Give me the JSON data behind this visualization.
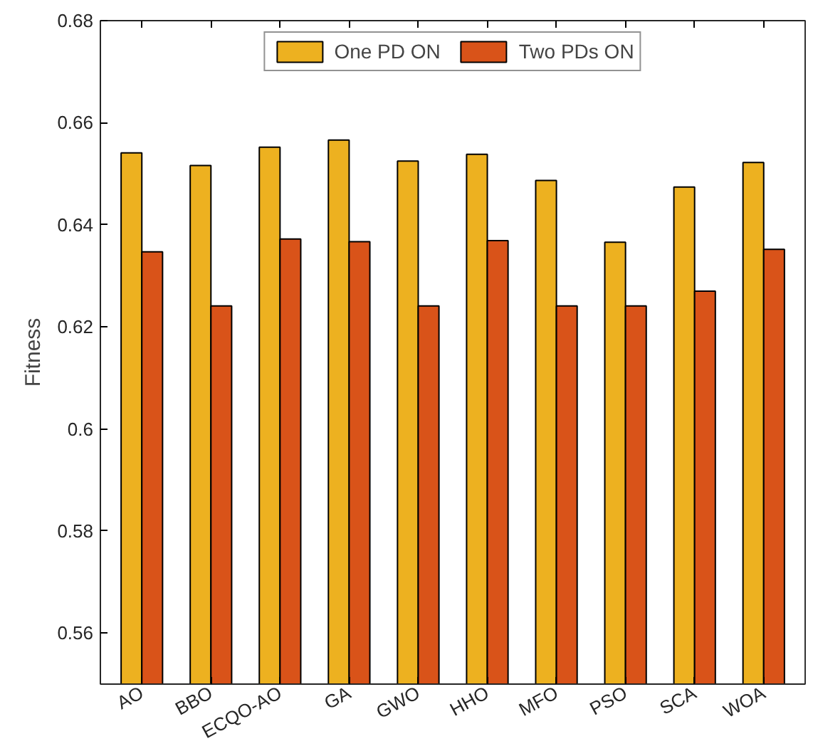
{
  "chart_data": {
    "type": "bar",
    "ylabel": "Fitness",
    "categories": [
      "AO",
      "BBO",
      "ECQO-AO",
      "GA",
      "GWO",
      "HHO",
      "MFO",
      "PSO",
      "SCA",
      "WOA"
    ],
    "series": [
      {
        "name": "One PD ON",
        "color": "#edb120",
        "values": [
          0.6541,
          0.6516,
          0.6552,
          0.6566,
          0.6525,
          0.6538,
          0.6487,
          0.6366,
          0.6474,
          0.6522
        ]
      },
      {
        "name": "Two PDs ON",
        "color": "#d95319",
        "values": [
          0.6347,
          0.6241,
          0.6372,
          0.6367,
          0.6241,
          0.6369,
          0.6241,
          0.6241,
          0.627,
          0.6352
        ]
      }
    ],
    "ylim": [
      0.55,
      0.68
    ],
    "yticks": [
      0.56,
      0.58,
      0.6,
      0.62,
      0.64,
      0.66,
      0.68
    ],
    "grid": false,
    "legend": "top"
  }
}
